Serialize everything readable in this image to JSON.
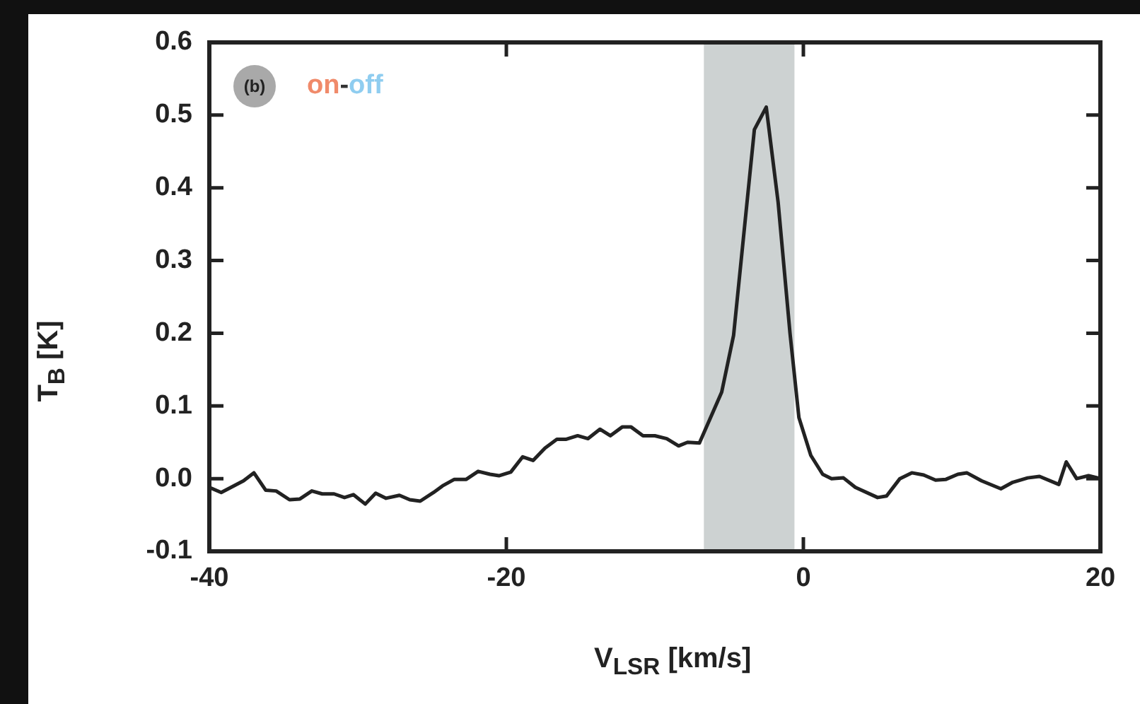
{
  "chart_data": {
    "type": "line",
    "xlabel": "V$_{LSR}$ [km/s]",
    "ylabel": "T$_{B}$ [K]",
    "annotations": [
      "(b)",
      "on",
      "-",
      "off"
    ],
    "xlim": [
      -40,
      20
    ],
    "xticks": [
      -40,
      -20,
      0,
      20
    ],
    "ylim": [
      -0.1,
      0.6
    ],
    "yticks": [
      {
        "value": -0.1,
        "label": "-0.1"
      },
      {
        "value": 0,
        "label": "0.0"
      },
      {
        "value": 0.1,
        "label": "0.1"
      },
      {
        "value": 0.2,
        "label": "0.2"
      },
      {
        "value": 0.3,
        "label": "0.3"
      },
      {
        "value": 0.4,
        "label": "0.4"
      },
      {
        "value": 0.5,
        "label": "0.5"
      },
      {
        "value": 0.6,
        "label": "0.6"
      }
    ],
    "grid": false,
    "legend": false,
    "marker": "none",
    "line_style": "solid",
    "bands": [
      {
        "axis": "x",
        "from": -6.7,
        "to": -0.6,
        "color": "#cdd2d2"
      }
    ],
    "series": [
      {
        "color": "#222222",
        "x": [
          -40,
          -39.2,
          -37.7,
          -37.0,
          -36.2,
          -35.5,
          -34.6,
          -33.9,
          -33.1,
          -32.4,
          -31.6,
          -30.9,
          -30.3,
          -29.5,
          -28.8,
          -28.1,
          -27.2,
          -26.5,
          -25.8,
          -24.9,
          -24.3,
          -23.5,
          -22.7,
          -21.9,
          -21.1,
          -20.5,
          -19.7,
          -18.9,
          -18.2,
          -17.4,
          -16.6,
          -16.0,
          -15.2,
          -14.5,
          -13.7,
          -13.0,
          -12.2,
          -11.6,
          -10.8,
          -10.0,
          -9.2,
          -8.4,
          -7.8,
          -7.0,
          -5.5,
          -4.7,
          -3.3,
          -2.5,
          -1.7,
          -0.9,
          -0.3,
          0.5,
          1.3,
          1.9,
          2.7,
          3.5,
          5.0,
          5.6,
          6.5,
          7.3,
          8.1,
          8.9,
          9.6,
          10.4,
          11.0,
          12.0,
          13.3,
          14.1,
          15.1,
          15.9,
          17.2,
          17.7,
          18.4,
          19.2,
          20.0
        ],
        "values": [
          -0.012,
          -0.019,
          -0.003,
          0.008,
          -0.016,
          -0.017,
          -0.029,
          -0.028,
          -0.017,
          -0.021,
          -0.021,
          -0.026,
          -0.022,
          -0.035,
          -0.02,
          -0.027,
          -0.023,
          -0.029,
          -0.031,
          -0.019,
          -0.01,
          -0.001,
          -0.001,
          0.01,
          0.006,
          0.004,
          0.009,
          0.03,
          0.025,
          0.042,
          0.054,
          0.054,
          0.059,
          0.055,
          0.068,
          0.059,
          0.071,
          0.071,
          0.059,
          0.059,
          0.055,
          0.045,
          0.05,
          0.049,
          0.119,
          0.197,
          0.48,
          0.511,
          0.38,
          0.2,
          0.084,
          0.032,
          0.006,
          0.0,
          0.001,
          -0.012,
          -0.026,
          -0.024,
          0.0,
          0.008,
          0.005,
          -0.002,
          -0.001,
          0.006,
          0.008,
          -0.003,
          -0.014,
          -0.005,
          0.001,
          0.003,
          -0.008,
          0.023,
          0.0,
          0.004,
          0.0
        ]
      }
    ]
  }
}
